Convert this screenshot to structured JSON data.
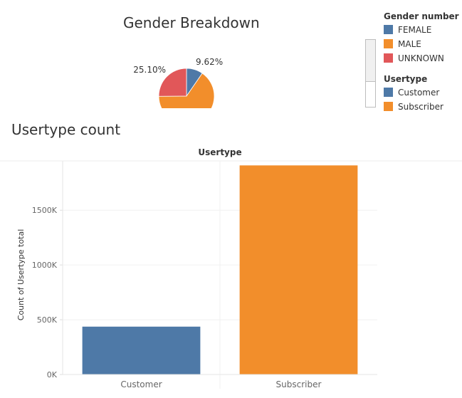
{
  "chart_data": [
    {
      "type": "pie",
      "title": "Gender Breakdown",
      "legend_title": "Gender number ..",
      "legend_placement": "right",
      "slices": [
        {
          "label": "FEMALE",
          "percent": 9.62,
          "color": "#4e79a7",
          "show_label": true
        },
        {
          "label": "MALE",
          "percent": 65.28,
          "color": "#f28e2b",
          "show_label": false
        },
        {
          "label": "UNKNOWN",
          "percent": 25.1,
          "color": "#e15759",
          "show_label": true
        }
      ],
      "slice_labels": [
        "9.62%",
        "25.10%"
      ]
    },
    {
      "type": "bar",
      "title": "Usertype count",
      "header": "Usertype",
      "legend_title": "Usertype",
      "legend_placement": "right",
      "categories": [
        "Customer",
        "Subscriber"
      ],
      "values": [
        437000,
        1909000
      ],
      "colors": [
        "#4e79a7",
        "#f28e2b"
      ],
      "ylabel": "Count of Usertype total",
      "xlabel": "",
      "ylim": [
        0,
        1950000
      ],
      "yticks": [
        0,
        500000,
        1000000,
        1500000
      ],
      "ytick_labels": [
        "0K",
        "500K",
        "1000K",
        "1500K"
      ],
      "grid": true
    }
  ],
  "legends": {
    "gender": {
      "title": "Gender number ..",
      "items": [
        {
          "label": "FEMALE",
          "color": "#4e79a7"
        },
        {
          "label": "MALE",
          "color": "#f28e2b"
        },
        {
          "label": "UNKNOWN",
          "color": "#e15759"
        }
      ]
    },
    "usertype": {
      "title": "Usertype",
      "items": [
        {
          "label": "Customer",
          "color": "#4e79a7"
        },
        {
          "label": "Subscriber",
          "color": "#f28e2b"
        }
      ]
    }
  }
}
